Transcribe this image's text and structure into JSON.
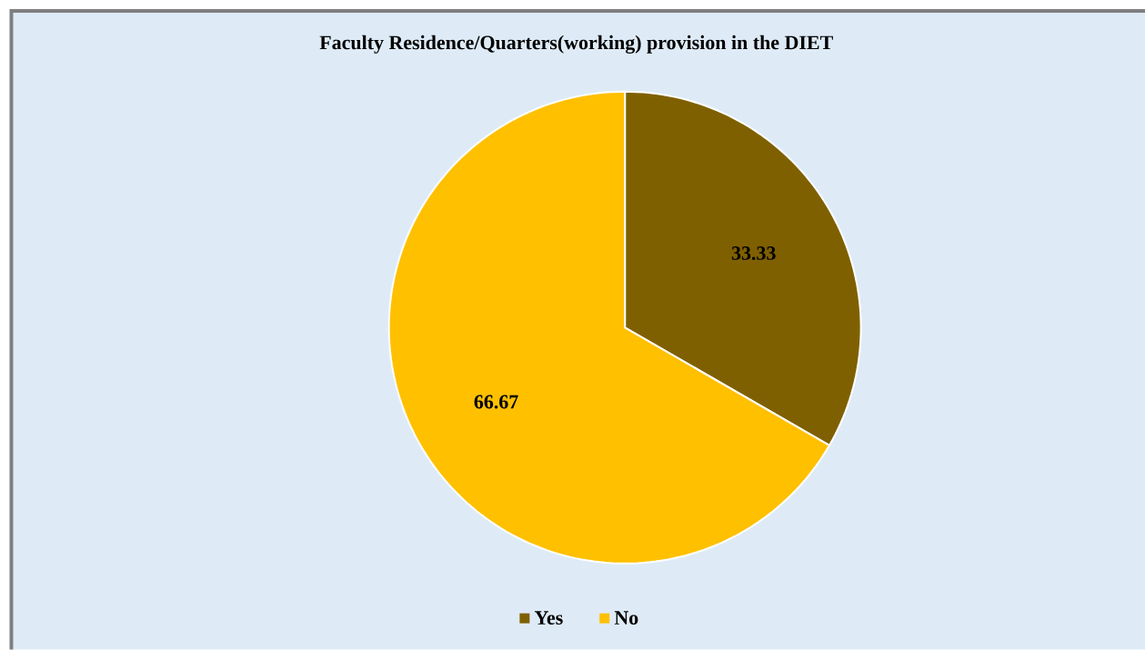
{
  "chart_data": {
    "type": "pie",
    "title": "Faculty Residence/Quarters(working) provision in the DIET",
    "categories": [
      "Yes",
      "No"
    ],
    "values": [
      33.33,
      66.67
    ],
    "colors": [
      "#7f6000",
      "#ffc000"
    ],
    "data_labels": true,
    "legend": "bottom"
  }
}
